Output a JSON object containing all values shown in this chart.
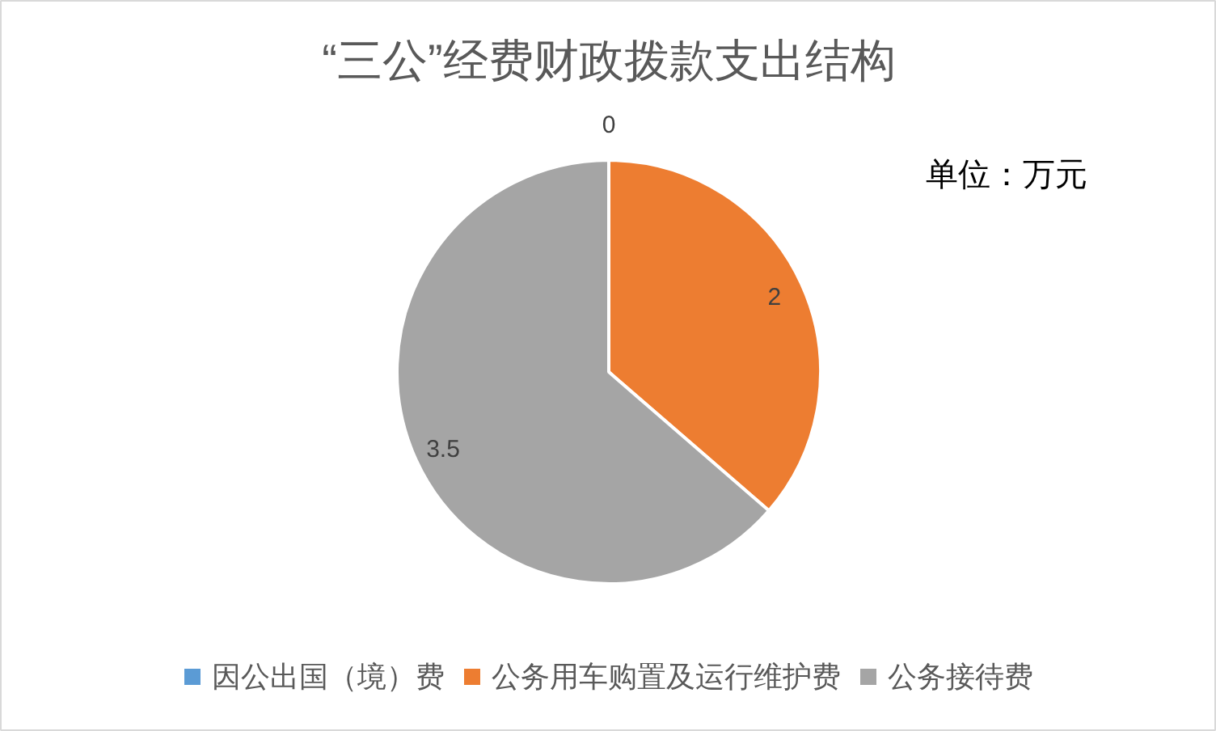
{
  "chart_data": {
    "type": "pie",
    "title": "“三公”经费财政拨款支出结构",
    "categories": [
      "因公出国（境）费",
      "公务用车购置及运行维护费",
      "公务接待费"
    ],
    "values": [
      0,
      2,
      3.5
    ],
    "value_labels": [
      "0",
      "2",
      "3.5"
    ],
    "colors": [
      "#5b9bd5",
      "#ed7d31",
      "#a5a5a5"
    ],
    "legend": "bottom",
    "annotations": [
      "单位：万元"
    ]
  }
}
